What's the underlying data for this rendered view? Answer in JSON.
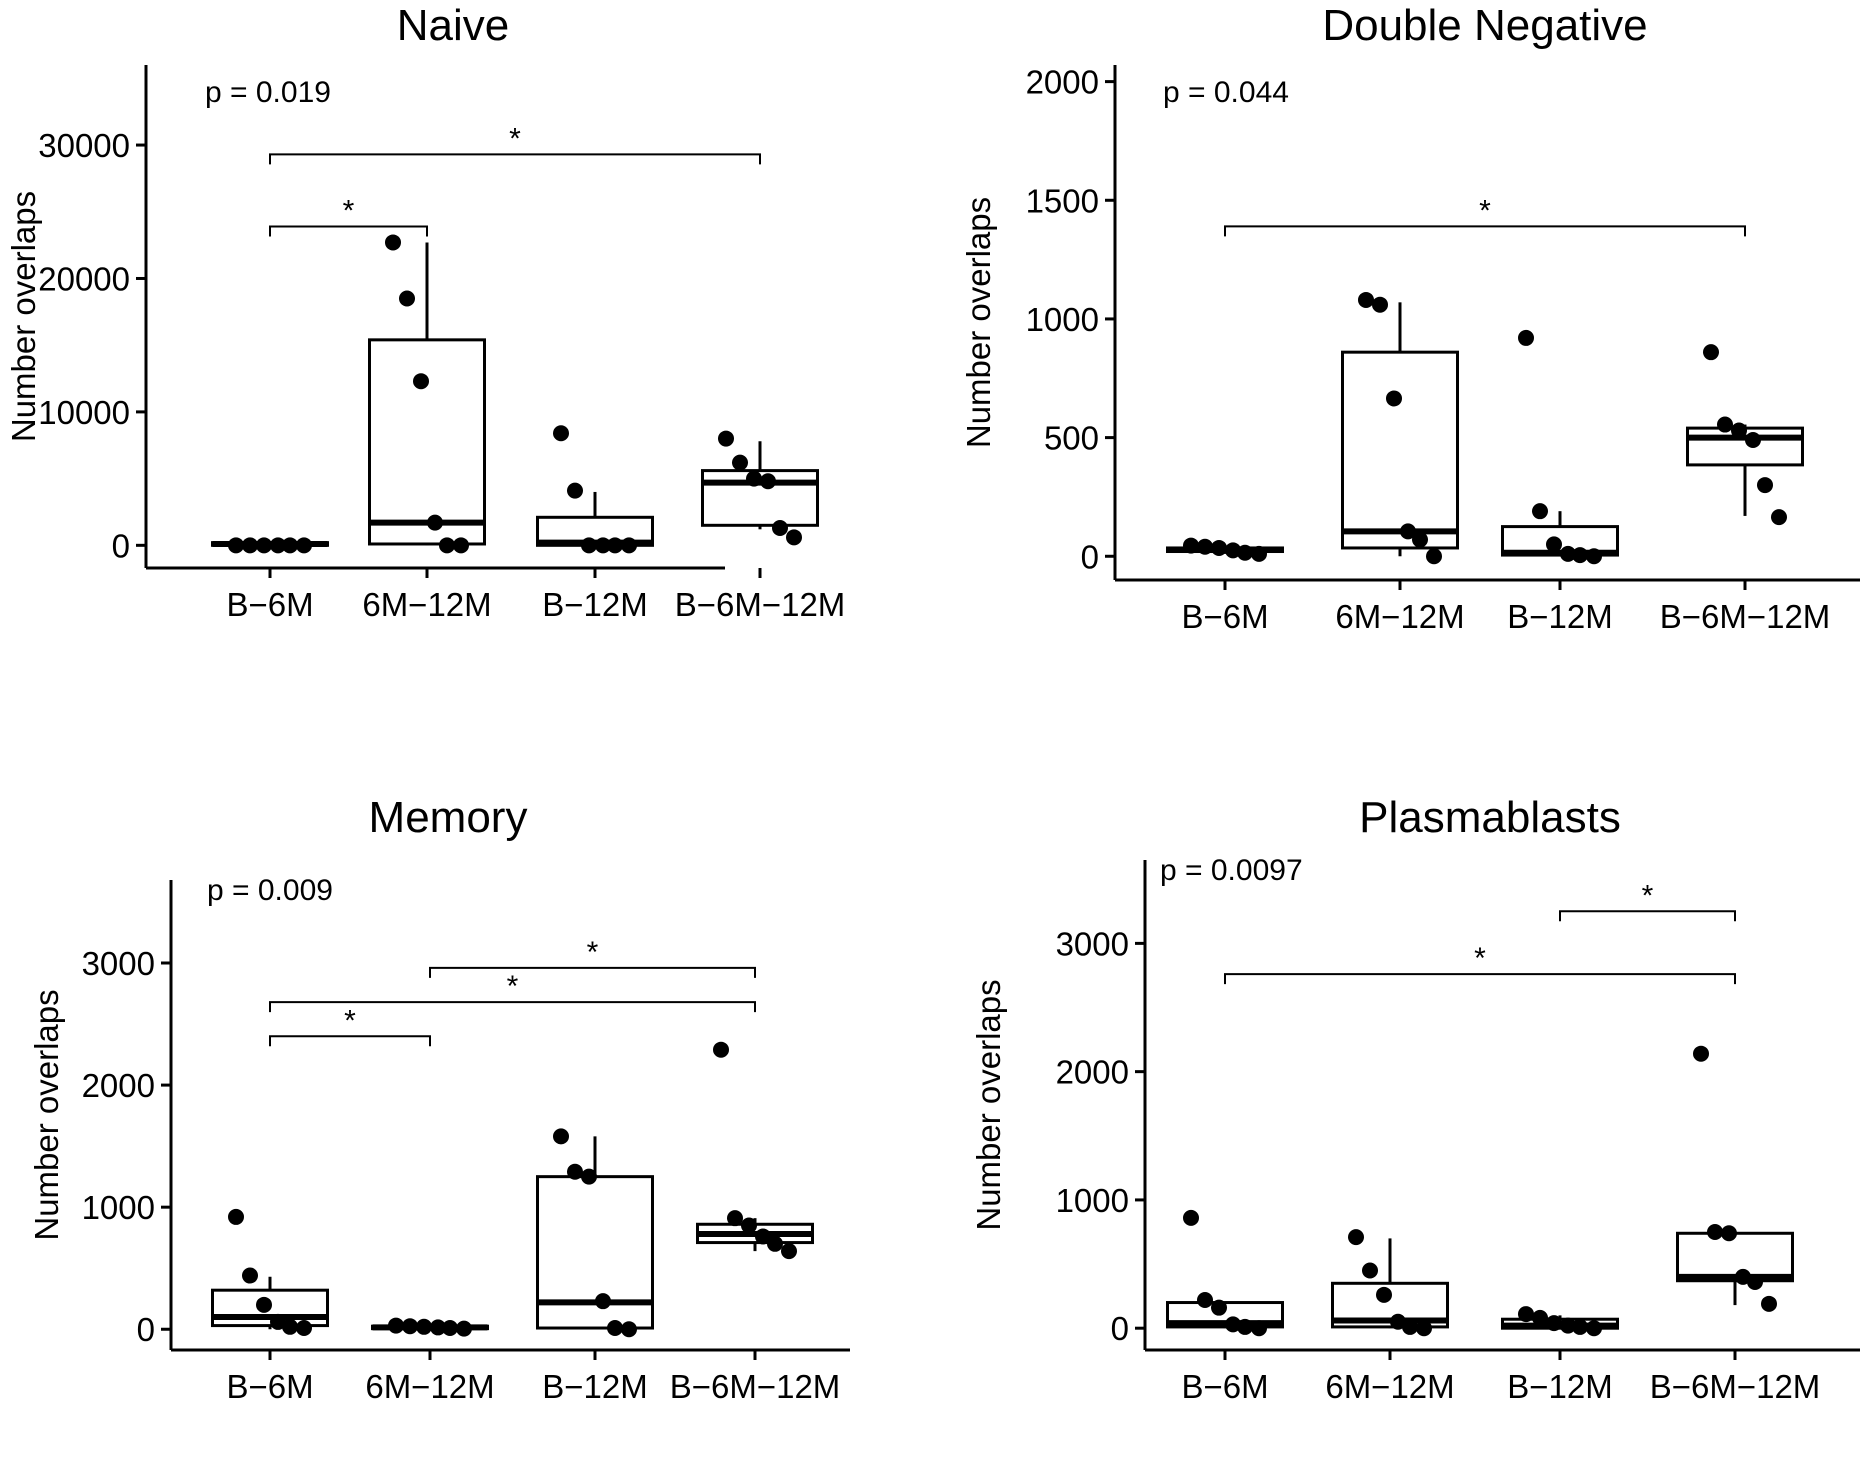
{
  "chart_data": [
    {
      "type": "box",
      "title": "Naive",
      "ylabel": "Number overlaps",
      "p_label": "p = 0.019",
      "categories": [
        "B−6M",
        "6M−12M",
        "B−12M",
        "B−6M−12M"
      ],
      "yticks": [
        0,
        10000,
        20000,
        30000
      ],
      "ylim": [
        -1700,
        36000
      ],
      "boxes": [
        {
          "min": 0,
          "q1": 0,
          "median": 100,
          "q3": 200,
          "max": 200
        },
        {
          "min": 0,
          "q1": 100,
          "median": 1700,
          "q3": 15400,
          "max": 22700
        },
        {
          "min": 0,
          "q1": 0,
          "median": 200,
          "q3": 2100,
          "max": 4000
        },
        {
          "min": 1200,
          "q1": 1500,
          "median": 4700,
          "q3": 5600,
          "max": 7800
        }
      ],
      "points": [
        [
          0,
          0,
          0,
          0,
          0,
          0
        ],
        [
          22700,
          18500,
          12300,
          1700,
          0,
          0
        ],
        [
          8400,
          4100,
          0,
          0,
          0,
          0
        ],
        [
          8000,
          6200,
          5000,
          4800,
          1300,
          600
        ]
      ],
      "brackets": [
        {
          "from": 0,
          "to": 1,
          "y": 23900,
          "label": "*"
        },
        {
          "from": 0,
          "to": 3,
          "y": 29300,
          "label": "*"
        }
      ]
    },
    {
      "type": "box",
      "title": "Double Negative",
      "ylabel": "Number overlaps",
      "p_label": "p = 0.044",
      "categories": [
        "B−6M",
        "6M−12M",
        "B−12M",
        "B−6M−12M"
      ],
      "yticks": [
        0,
        500,
        1000,
        1500,
        2000
      ],
      "ylim": [
        -100,
        2070
      ],
      "boxes": [
        {
          "min": 10,
          "q1": 20,
          "median": 28,
          "q3": 35,
          "max": 45
        },
        {
          "min": 0,
          "q1": 35,
          "median": 105,
          "q3": 860,
          "max": 1070
        },
        {
          "min": 0,
          "q1": 5,
          "median": 15,
          "q3": 125,
          "max": 190
        },
        {
          "min": 170,
          "q1": 385,
          "median": 500,
          "q3": 540,
          "max": 555
        }
      ],
      "points": [
        [
          45,
          40,
          35,
          25,
          15,
          10
        ],
        [
          1080,
          1060,
          665,
          105,
          70,
          0
        ],
        [
          920,
          190,
          50,
          10,
          5,
          0
        ],
        [
          860,
          555,
          530,
          490,
          300,
          165
        ]
      ],
      "brackets": [
        {
          "from": 0,
          "to": 3,
          "y": 1390,
          "label": "*"
        }
      ]
    },
    {
      "type": "box",
      "title": "Memory",
      "ylabel": "Number overlaps",
      "p_label": "p = 0.009",
      "categories": [
        "B−6M",
        "6M−12M",
        "B−12M",
        "B−6M−12M"
      ],
      "yticks": [
        0,
        1000,
        2000,
        3000
      ],
      "ylim": [
        -170,
        3680
      ],
      "boxes": [
        {
          "min": 0,
          "q1": 30,
          "median": 100,
          "q3": 320,
          "max": 430
        },
        {
          "min": 0,
          "q1": 5,
          "median": 15,
          "q3": 25,
          "max": 30
        },
        {
          "min": 0,
          "q1": 10,
          "median": 220,
          "q3": 1250,
          "max": 1580
        },
        {
          "min": 640,
          "q1": 710,
          "median": 780,
          "q3": 860,
          "max": 910
        }
      ],
      "points": [
        [
          920,
          440,
          200,
          60,
          20,
          10
        ],
        [
          30,
          25,
          20,
          15,
          10,
          5
        ],
        [
          1580,
          1290,
          1250,
          230,
          10,
          0
        ],
        [
          2290,
          910,
          850,
          760,
          700,
          640
        ]
      ],
      "brackets": [
        {
          "from": 0,
          "to": 1,
          "y": 2400,
          "label": "*"
        },
        {
          "from": 0,
          "to": 3,
          "y": 2680,
          "label": "*"
        },
        {
          "from": 1,
          "to": 3,
          "y": 2960,
          "label": "*"
        }
      ]
    },
    {
      "type": "box",
      "title": "Plasmablasts",
      "ylabel": "Number overlaps",
      "p_label": "p = 0.0097",
      "categories": [
        "B−6M",
        "6M−12M",
        "B−12M",
        "B−6M−12M"
      ],
      "yticks": [
        0,
        1000,
        2000,
        3000
      ],
      "ylim": [
        -170,
        3650
      ],
      "boxes": [
        {
          "min": 0,
          "q1": 10,
          "median": 40,
          "q3": 200,
          "max": 200
        },
        {
          "min": 0,
          "q1": 10,
          "median": 60,
          "q3": 350,
          "max": 700
        },
        {
          "min": 0,
          "q1": 0,
          "median": 20,
          "q3": 70,
          "max": 100
        },
        {
          "min": 180,
          "q1": 370,
          "median": 400,
          "q3": 740,
          "max": 740
        }
      ],
      "points": [
        [
          860,
          220,
          160,
          30,
          10,
          0
        ],
        [
          710,
          450,
          260,
          50,
          10,
          0
        ],
        [
          110,
          80,
          40,
          20,
          10,
          0
        ],
        [
          2140,
          750,
          740,
          400,
          360,
          190
        ]
      ],
      "brackets": [
        {
          "from": 0,
          "to": 3,
          "y": 2760,
          "label": "*"
        },
        {
          "from": 2,
          "to": 3,
          "y": 3250,
          "label": "*"
        }
      ]
    }
  ]
}
